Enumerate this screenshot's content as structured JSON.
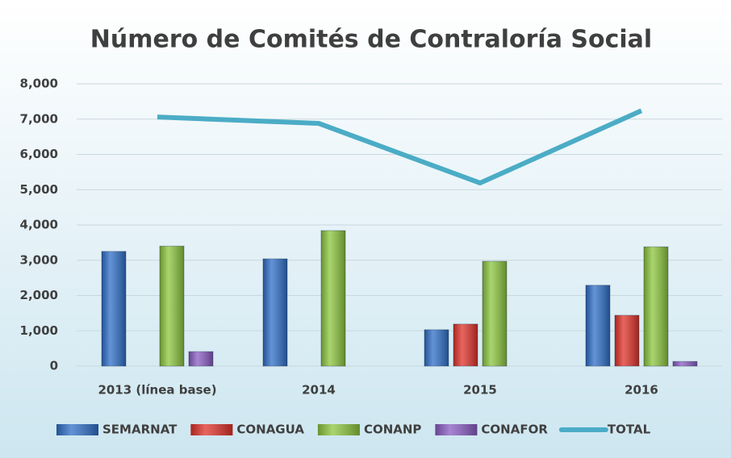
{
  "chart_data": {
    "type": "bar",
    "title": "Número de Comités de Contraloría Social",
    "categories": [
      "2013 (línea base)",
      "2014",
      "2015",
      "2016"
    ],
    "series": [
      {
        "name": "SEMARNAT",
        "color": "#2f6fc8",
        "values": [
          3250,
          3040,
          1030,
          2290
        ]
      },
      {
        "name": "CONAGUA",
        "color": "#e0322a",
        "values": [
          0,
          0,
          1190,
          1440
        ]
      },
      {
        "name": "CONANP",
        "color": "#8cc63e",
        "values": [
          3400,
          3840,
          2970,
          3380
        ]
      },
      {
        "name": "CONAFOR",
        "color": "#8a5cc4",
        "values": [
          410,
          0,
          0,
          130
        ]
      },
      {
        "name": "TOTAL",
        "type": "line",
        "color": "#4bacc6",
        "values": [
          7060,
          6880,
          5190,
          7240
        ]
      }
    ],
    "ylim": [
      0,
      8000
    ],
    "yticks": [
      0,
      {
        "value": 1000,
        "label": "1,000"
      },
      {
        "value": 2000,
        "label": "2,000"
      },
      {
        "value": 3000,
        "label": "3,000"
      },
      {
        "value": 4000,
        "label": "4,000"
      },
      {
        "value": 5000,
        "label": "5,000"
      },
      {
        "value": 6000,
        "label": "6,000"
      },
      {
        "value": 7000,
        "label": "7,000"
      },
      {
        "value": 8000,
        "label": "8,000"
      }
    ],
    "grid": true,
    "legend": "bottom"
  }
}
